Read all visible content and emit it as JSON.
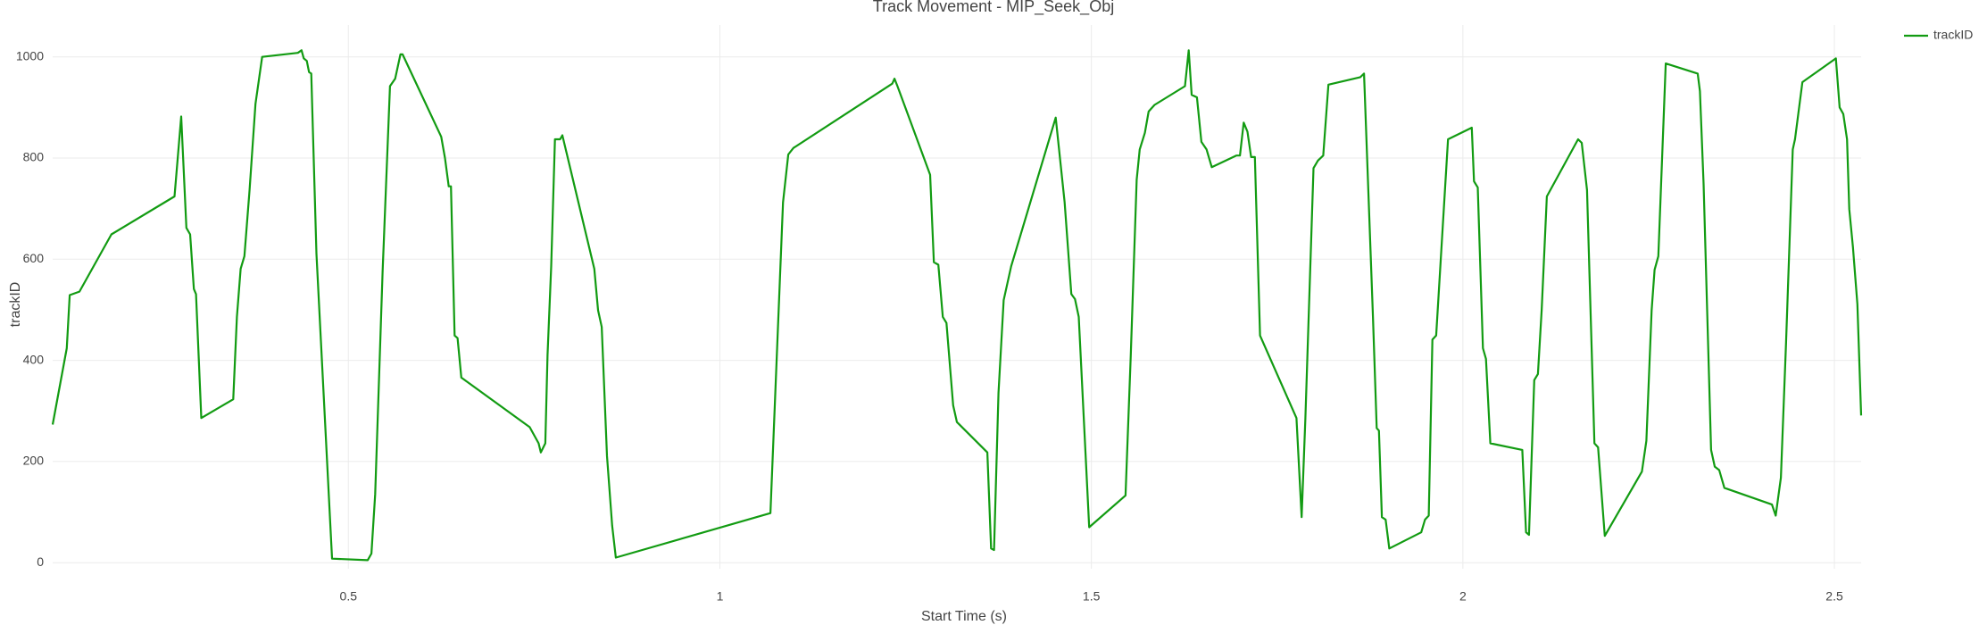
{
  "chart_data": {
    "type": "line",
    "title": "Track Movement - MIP_Seek_Obj",
    "x_label": "Start Time (s)",
    "y_label": "trackID",
    "x": [
      0.102,
      0.121,
      0.125,
      0.138,
      0.181,
      0.266,
      0.275,
      0.282,
      0.287,
      0.292,
      0.295,
      0.302,
      0.345,
      0.35,
      0.355,
      0.36,
      0.367,
      0.375,
      0.384,
      0.432,
      0.437,
      0.44,
      0.444,
      0.447,
      0.45,
      0.457,
      0.478,
      0.526,
      0.531,
      0.536,
      0.546,
      0.556,
      0.563,
      0.57,
      0.573,
      0.625,
      0.63,
      0.635,
      0.638,
      0.643,
      0.647,
      0.652,
      0.744,
      0.756,
      0.759,
      0.765,
      0.768,
      0.773,
      0.778,
      0.785,
      0.788,
      0.831,
      0.836,
      0.841,
      0.848,
      0.855,
      0.86,
      1.068,
      1.085,
      1.092,
      1.099,
      1.232,
      1.235,
      1.239,
      1.283,
      1.288,
      1.294,
      1.3,
      1.305,
      1.314,
      1.319,
      1.36,
      1.365,
      1.369,
      1.375,
      1.382,
      1.392,
      1.452,
      1.464,
      1.473,
      1.478,
      1.483,
      1.497,
      1.546,
      1.553,
      1.561,
      1.565,
      1.572,
      1.577,
      1.585,
      1.626,
      1.631,
      1.635,
      1.642,
      1.648,
      1.655,
      1.662,
      1.695,
      1.7,
      1.705,
      1.71,
      1.715,
      1.72,
      1.727,
      1.776,
      1.783,
      1.788,
      1.799,
      1.805,
      1.812,
      1.819,
      1.862,
      1.867,
      1.879,
      1.884,
      1.887,
      1.891,
      1.896,
      1.901,
      1.944,
      1.949,
      1.954,
      1.959,
      1.964,
      1.98,
      2.012,
      2.015,
      2.02,
      2.027,
      2.031,
      2.037,
      2.08,
      2.085,
      2.089,
      2.096,
      2.101,
      2.106,
      2.113,
      2.155,
      2.16,
      2.167,
      2.177,
      2.182,
      2.191,
      2.241,
      2.247,
      2.254,
      2.258,
      2.263,
      2.273,
      2.316,
      2.319,
      2.324,
      2.334,
      2.339,
      2.345,
      2.352,
      2.416,
      2.421,
      2.428,
      2.435,
      2.444,
      2.447,
      2.457,
      2.502,
      2.507,
      2.512,
      2.517,
      2.52,
      2.525,
      2.531,
      2.536
    ],
    "series": [
      {
        "name": "trackID",
        "color": "#129b12",
        "values": [
          273,
          424,
          529,
          536,
          649,
          724,
          882,
          662,
          649,
          541,
          531,
          286,
          323,
          486,
          581,
          606,
          737,
          907,
          1000,
          1008,
          1013,
          997,
          992,
          970,
          967,
          611,
          8,
          5,
          18,
          135,
          574,
          942,
          957,
          1005,
          1005,
          842,
          800,
          744,
          744,
          449,
          444,
          366,
          268,
          236,
          218,
          236,
          411,
          586,
          837,
          837,
          845,
          581,
          499,
          466,
          211,
          73,
          10,
          98,
          712,
          807,
          820,
          947,
          957,
          942,
          767,
          594,
          589,
          486,
          474,
          311,
          278,
          218,
          28,
          25,
          336,
          519,
          586,
          880,
          712,
          531,
          521,
          486,
          70,
          133,
          411,
          757,
          817,
          850,
          892,
          905,
          942,
          1013,
          925,
          920,
          832,
          817,
          782,
          805,
          805,
          870,
          852,
          802,
          802,
          449,
          286,
          90,
          286,
          780,
          795,
          805,
          945,
          960,
          967,
          486,
          266,
          261,
          90,
          85,
          28,
          60,
          85,
          93,
          441,
          449,
          837,
          860,
          754,
          742,
          424,
          403,
          236,
          223,
          60,
          55,
          361,
          373,
          499,
          724,
          837,
          830,
          737,
          236,
          228,
          53,
          180,
          241,
          499,
          579,
          606,
          987,
          967,
          932,
          749,
          223,
          190,
          183,
          148,
          115,
          93,
          168,
          436,
          817,
          837,
          950,
          997,
          900,
          887,
          837,
          699,
          624,
          511,
          291
        ]
      }
    ],
    "xlim": [
      0.102,
      2.536
    ],
    "xticks": [
      0.5,
      1,
      1.5,
      2,
      2.5
    ],
    "ylim": [
      -12,
      1063
    ],
    "yticks": [
      0,
      200,
      400,
      600,
      800,
      1000
    ],
    "grid": true,
    "legend": "top-right"
  }
}
